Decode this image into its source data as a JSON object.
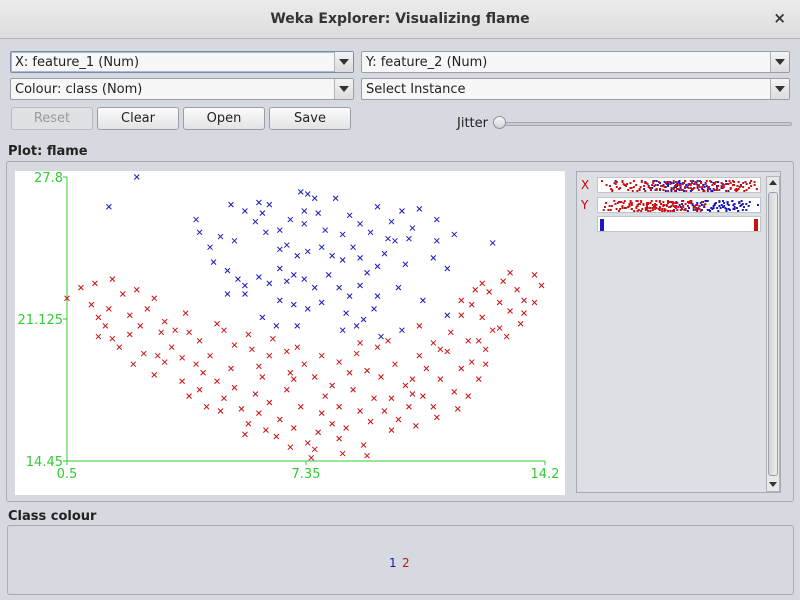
{
  "window": {
    "title": "Weka Explorer: Visualizing flame",
    "close_glyph": "×"
  },
  "controls": {
    "x_axis": "X: feature_1 (Num)",
    "y_axis": "Y: feature_2 (Num)",
    "colour": "Colour: class (Nom)",
    "instance": "Select Instance",
    "buttons": {
      "reset": "Reset",
      "clear": "Clear",
      "open": "Open",
      "save": "Save"
    },
    "jitter_label": "Jitter",
    "jitter_value": 0
  },
  "plot": {
    "title": "Plot: flame",
    "x_ticks": [
      "0.5",
      "7.35",
      "14.2"
    ],
    "y_ticks": [
      "27.8",
      "21.125",
      "14.45"
    ],
    "side_labels": {
      "x": "X",
      "y": "Y"
    }
  },
  "class_colour": {
    "title": "Class colour",
    "classes": [
      {
        "name": "1",
        "color": "#1a1ac0"
      },
      {
        "name": "2",
        "color": "#cc1111"
      }
    ]
  },
  "colors": {
    "axis": "#33cc33",
    "class1": "#1a1ac0",
    "class2": "#cc1111"
  },
  "chart_data": {
    "type": "scatter",
    "title": "Plot: flame",
    "xlabel": "feature_1",
    "ylabel": "feature_2",
    "xlim": [
      0.5,
      14.2
    ],
    "ylim": [
      14.45,
      27.8
    ],
    "legend": "bottom",
    "series": [
      {
        "name": "1",
        "color": "#1a1ac0",
        "marker": "x",
        "points": [
          [
            1.7,
            26.4
          ],
          [
            2.5,
            27.8
          ],
          [
            4.2,
            25.8
          ],
          [
            4.3,
            25.2
          ],
          [
            4.6,
            24.5
          ],
          [
            5.2,
            26.5
          ],
          [
            5.6,
            26.2
          ],
          [
            6.0,
            26.6
          ],
          [
            6.1,
            26.1
          ],
          [
            6.3,
            26.5
          ],
          [
            4.9,
            25.0
          ],
          [
            5.3,
            24.8
          ],
          [
            5.9,
            25.7
          ],
          [
            6.6,
            25.3
          ],
          [
            7.2,
            27.1
          ],
          [
            7.4,
            27.0
          ],
          [
            7.6,
            26.8
          ],
          [
            7.3,
            26.2
          ],
          [
            6.9,
            25.8
          ],
          [
            7.7,
            26.1
          ],
          [
            8.2,
            26.8
          ],
          [
            8.6,
            26.0
          ],
          [
            8.9,
            25.6
          ],
          [
            9.4,
            26.4
          ],
          [
            9.8,
            25.7
          ],
          [
            10.1,
            26.2
          ],
          [
            10.6,
            26.3
          ],
          [
            10.4,
            25.4
          ],
          [
            10.3,
            24.9
          ],
          [
            11.1,
            24.8
          ],
          [
            11.6,
            25.1
          ],
          [
            11.1,
            25.8
          ],
          [
            4.7,
            23.8
          ],
          [
            5.1,
            23.4
          ],
          [
            5.4,
            23.0
          ],
          [
            5.6,
            22.7
          ],
          [
            6.0,
            23.1
          ],
          [
            6.3,
            22.8
          ],
          [
            6.6,
            23.5
          ],
          [
            6.8,
            22.9
          ],
          [
            7.0,
            23.2
          ],
          [
            6.6,
            24.4
          ],
          [
            7.1,
            24.1
          ],
          [
            7.4,
            24.3
          ],
          [
            7.8,
            24.5
          ],
          [
            8.1,
            24.1
          ],
          [
            8.4,
            23.9
          ],
          [
            8.7,
            24.5
          ],
          [
            8.9,
            24.0
          ],
          [
            9.4,
            23.6
          ],
          [
            9.6,
            24.2
          ],
          [
            9.9,
            24.8
          ],
          [
            10.2,
            23.7
          ],
          [
            6.2,
            25.2
          ],
          [
            6.8,
            24.6
          ],
          [
            7.3,
            25.6
          ],
          [
            7.9,
            25.3
          ],
          [
            8.4,
            25.1
          ],
          [
            9.2,
            25.2
          ],
          [
            9.7,
            24.9
          ],
          [
            7.3,
            23.0
          ],
          [
            7.6,
            22.6
          ],
          [
            8.0,
            23.2
          ],
          [
            8.3,
            22.6
          ],
          [
            8.6,
            22.2
          ],
          [
            8.9,
            22.7
          ],
          [
            9.1,
            23.3
          ],
          [
            9.4,
            22.2
          ],
          [
            10.0,
            22.6
          ],
          [
            10.7,
            22.0
          ],
          [
            5.1,
            22.3
          ],
          [
            5.6,
            22.3
          ],
          [
            6.6,
            22.0
          ],
          [
            6.1,
            21.2
          ],
          [
            7.0,
            21.8
          ],
          [
            7.4,
            21.6
          ],
          [
            7.8,
            21.9
          ],
          [
            8.5,
            21.4
          ],
          [
            9.0,
            21.1
          ],
          [
            9.3,
            21.6
          ],
          [
            6.5,
            20.8
          ],
          [
            7.1,
            20.8
          ],
          [
            8.4,
            20.6
          ],
          [
            8.8,
            20.8
          ],
          [
            9.5,
            20.3
          ],
          [
            10.1,
            20.6
          ],
          [
            11.4,
            21.3
          ],
          [
            11.0,
            24.0
          ],
          [
            11.4,
            23.5
          ],
          [
            12.7,
            24.7
          ]
        ]
      },
      {
        "name": "2",
        "color": "#cc1111",
        "marker": "x",
        "points": [
          [
            0.5,
            22.1
          ],
          [
            0.9,
            22.6
          ],
          [
            1.3,
            22.8
          ],
          [
            1.8,
            23.0
          ],
          [
            1.2,
            21.8
          ],
          [
            1.4,
            21.2
          ],
          [
            1.6,
            20.8
          ],
          [
            1.8,
            20.2
          ],
          [
            1.4,
            20.3
          ],
          [
            1.7,
            21.6
          ],
          [
            2.1,
            22.3
          ],
          [
            2.3,
            21.3
          ],
          [
            2.5,
            22.5
          ],
          [
            2.0,
            19.8
          ],
          [
            2.3,
            20.4
          ],
          [
            2.6,
            20.8
          ],
          [
            2.8,
            21.6
          ],
          [
            3.0,
            22.1
          ],
          [
            3.3,
            21.0
          ],
          [
            3.6,
            20.6
          ],
          [
            2.7,
            19.5
          ],
          [
            3.0,
            18.5
          ],
          [
            3.3,
            19.1
          ],
          [
            3.5,
            19.8
          ],
          [
            3.8,
            19.3
          ],
          [
            4.0,
            20.5
          ],
          [
            4.2,
            19.0
          ],
          [
            3.8,
            18.2
          ],
          [
            4.4,
            18.6
          ],
          [
            4.6,
            19.4
          ],
          [
            4.3,
            17.8
          ],
          [
            4.5,
            17.0
          ],
          [
            4.8,
            18.2
          ],
          [
            5.0,
            17.4
          ],
          [
            5.2,
            18.8
          ],
          [
            5.3,
            17.9
          ],
          [
            5.5,
            16.9
          ],
          [
            5.7,
            16.2
          ],
          [
            5.9,
            17.6
          ],
          [
            6.1,
            18.4
          ],
          [
            6.0,
            16.7
          ],
          [
            6.3,
            17.2
          ],
          [
            6.5,
            15.6
          ],
          [
            6.6,
            16.4
          ],
          [
            6.8,
            17.8
          ],
          [
            7.0,
            18.3
          ],
          [
            7.2,
            17.0
          ],
          [
            7.0,
            16.0
          ],
          [
            7.4,
            15.3
          ],
          [
            7.5,
            14.6
          ],
          [
            7.7,
            15.8
          ],
          [
            7.8,
            16.7
          ],
          [
            7.9,
            17.5
          ],
          [
            8.1,
            18.0
          ],
          [
            8.1,
            16.2
          ],
          [
            8.3,
            15.5
          ],
          [
            8.3,
            17.0
          ],
          [
            8.5,
            16.0
          ],
          [
            8.7,
            17.8
          ],
          [
            8.9,
            16.8
          ],
          [
            9.0,
            15.2
          ],
          [
            9.2,
            16.3
          ],
          [
            9.3,
            17.4
          ],
          [
            9.5,
            18.4
          ],
          [
            9.6,
            16.8
          ],
          [
            9.8,
            17.4
          ],
          [
            10.0,
            16.4
          ],
          [
            10.2,
            18.0
          ],
          [
            10.3,
            17.0
          ],
          [
            10.5,
            16.1
          ],
          [
            10.7,
            17.5
          ],
          [
            10.8,
            18.8
          ],
          [
            11.0,
            17.0
          ],
          [
            11.2,
            18.3
          ],
          [
            11.4,
            19.6
          ],
          [
            11.6,
            17.7
          ],
          [
            11.8,
            18.8
          ],
          [
            12.0,
            20.1
          ],
          [
            12.1,
            19.1
          ],
          [
            12.3,
            18.3
          ],
          [
            12.5,
            19.7
          ],
          [
            12.7,
            20.6
          ],
          [
            12.4,
            21.2
          ],
          [
            12.9,
            21.9
          ],
          [
            12.6,
            22.4
          ],
          [
            13.0,
            22.9
          ],
          [
            13.2,
            23.3
          ],
          [
            13.4,
            22.5
          ],
          [
            13.6,
            22.0
          ],
          [
            13.9,
            23.2
          ],
          [
            14.1,
            22.7
          ],
          [
            13.9,
            21.9
          ],
          [
            11.0,
            20.0
          ],
          [
            10.6,
            19.4
          ],
          [
            10.4,
            18.3
          ],
          [
            9.9,
            19.0
          ],
          [
            9.4,
            19.8
          ],
          [
            8.8,
            19.5
          ],
          [
            8.3,
            19.1
          ],
          [
            7.8,
            19.4
          ],
          [
            7.3,
            19.0
          ],
          [
            6.8,
            19.6
          ],
          [
            6.3,
            19.4
          ],
          [
            5.8,
            19.7
          ],
          [
            5.3,
            19.9
          ],
          [
            5.0,
            20.6
          ],
          [
            6.0,
            18.9
          ],
          [
            6.9,
            18.6
          ],
          [
            7.6,
            18.4
          ],
          [
            8.6,
            18.6
          ],
          [
            9.1,
            18.7
          ],
          [
            11.2,
            19.7
          ],
          [
            11.8,
            21.3
          ],
          [
            12.1,
            21.8
          ],
          [
            12.4,
            22.8
          ],
          [
            13.2,
            21.5
          ],
          [
            13.5,
            20.9
          ],
          [
            12.9,
            20.7
          ],
          [
            12.3,
            20.1
          ],
          [
            11.5,
            20.5
          ],
          [
            10.6,
            20.8
          ],
          [
            9.7,
            20.1
          ],
          [
            8.9,
            20.0
          ],
          [
            7.1,
            19.8
          ],
          [
            6.4,
            20.2
          ],
          [
            5.7,
            20.4
          ],
          [
            4.8,
            20.9
          ],
          [
            4.3,
            20.1
          ],
          [
            3.9,
            21.4
          ],
          [
            3.2,
            20.5
          ],
          [
            2.4,
            19.0
          ],
          [
            3.1,
            19.4
          ],
          [
            4.0,
            17.5
          ],
          [
            4.9,
            16.8
          ],
          [
            5.6,
            15.7
          ],
          [
            6.2,
            15.9
          ],
          [
            6.9,
            15.1
          ],
          [
            7.6,
            15.0
          ],
          [
            8.4,
            14.8
          ],
          [
            9.1,
            14.7
          ],
          [
            9.8,
            15.9
          ],
          [
            10.4,
            17.6
          ],
          [
            11.1,
            16.5
          ],
          [
            11.7,
            16.9
          ],
          [
            12.0,
            17.5
          ],
          [
            12.5,
            19.0
          ],
          [
            13.1,
            20.3
          ],
          [
            13.6,
            21.4
          ],
          [
            12.2,
            22.5
          ],
          [
            11.8,
            22.0
          ]
        ]
      }
    ]
  }
}
